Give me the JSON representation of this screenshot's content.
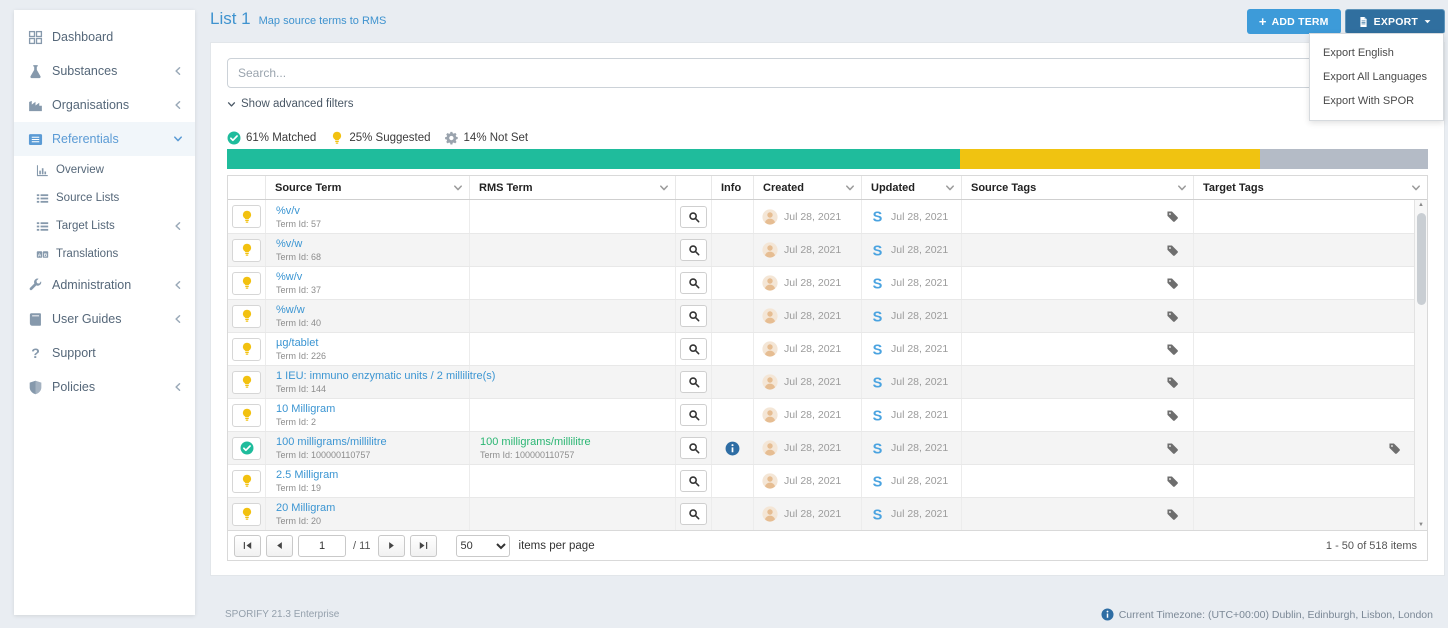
{
  "sidebar": {
    "items": [
      {
        "label": "Dashboard",
        "icon": "dashboard",
        "chevron": null,
        "active": false,
        "sub": false
      },
      {
        "label": "Substances",
        "icon": "flask",
        "chevron": "left",
        "active": false,
        "sub": false
      },
      {
        "label": "Organisations",
        "icon": "industry",
        "chevron": "left",
        "active": false,
        "sub": false
      },
      {
        "label": "Referentials",
        "icon": "list-alt",
        "chevron": "down",
        "active": true,
        "sub": false
      },
      {
        "label": "Overview",
        "icon": "chart",
        "chevron": null,
        "active": false,
        "sub": true
      },
      {
        "label": "Source Lists",
        "icon": "list",
        "chevron": null,
        "active": false,
        "sub": true
      },
      {
        "label": "Target Lists",
        "icon": "list",
        "chevron": "left",
        "active": false,
        "sub": true
      },
      {
        "label": "Translations",
        "icon": "translate",
        "chevron": null,
        "active": false,
        "sub": true
      },
      {
        "label": "Administration",
        "icon": "wrench",
        "chevron": "left",
        "active": false,
        "sub": false
      },
      {
        "label": "User Guides",
        "icon": "book",
        "chevron": "left",
        "active": false,
        "sub": false
      },
      {
        "label": "Support",
        "icon": "question",
        "chevron": null,
        "active": false,
        "sub": false
      },
      {
        "label": "Policies",
        "icon": "shield",
        "chevron": "left",
        "active": false,
        "sub": false
      }
    ]
  },
  "header": {
    "title": "List 1",
    "subtitle": "Map source terms to RMS",
    "add_plus": "+",
    "add_term_label": "ADD TERM",
    "export_label": "EXPORT",
    "export_menu": [
      "Export English",
      "Export All Languages",
      "Export With SPOR"
    ]
  },
  "filters": {
    "search_placeholder": "Search...",
    "search_value": "",
    "advanced_label": "Show advanced filters"
  },
  "status": {
    "matched": {
      "pct": 61,
      "label": "61% Matched",
      "color": "#1fbc9c"
    },
    "suggested": {
      "pct": 25,
      "label": "25% Suggested",
      "color": "#f0c311"
    },
    "not_set": {
      "pct": 14,
      "label": "14% Not Set",
      "color": "#b4bbc6"
    }
  },
  "table": {
    "columns": [
      {
        "label": "Source Term",
        "menu": true
      },
      {
        "label": "RMS Term",
        "menu": true
      },
      {
        "label": "Info",
        "menu": false
      },
      {
        "label": "Created",
        "menu": true
      },
      {
        "label": "Updated",
        "menu": true
      },
      {
        "label": "Source Tags",
        "menu": true
      },
      {
        "label": "Target Tags",
        "menu": true
      }
    ],
    "rows": [
      {
        "status": "suggested",
        "term": "%v/v",
        "term_id": "Term Id: 57",
        "rms_term": "",
        "rms_term_id": "",
        "info": false,
        "created": "Jul 28, 2021",
        "updated": "Jul 28, 2021",
        "source_tag": true,
        "target_tag": false
      },
      {
        "status": "suggested",
        "term": "%v/w",
        "term_id": "Term Id: 68",
        "rms_term": "",
        "rms_term_id": "",
        "info": false,
        "created": "Jul 28, 2021",
        "updated": "Jul 28, 2021",
        "source_tag": true,
        "target_tag": false
      },
      {
        "status": "suggested",
        "term": "%w/v",
        "term_id": "Term Id: 37",
        "rms_term": "",
        "rms_term_id": "",
        "info": false,
        "created": "Jul 28, 2021",
        "updated": "Jul 28, 2021",
        "source_tag": true,
        "target_tag": false
      },
      {
        "status": "suggested",
        "term": "%w/w",
        "term_id": "Term Id: 40",
        "rms_term": "",
        "rms_term_id": "",
        "info": false,
        "created": "Jul 28, 2021",
        "updated": "Jul 28, 2021",
        "source_tag": true,
        "target_tag": false
      },
      {
        "status": "suggested",
        "term": "µg/tablet",
        "term_id": "Term Id: 226",
        "rms_term": "",
        "rms_term_id": "",
        "info": false,
        "created": "Jul 28, 2021",
        "updated": "Jul 28, 2021",
        "source_tag": true,
        "target_tag": false
      },
      {
        "status": "suggested",
        "term": "1 IEU: immuno enzymatic units / 2 millilitre(s)",
        "term_id": "Term Id: 144",
        "rms_term": "",
        "rms_term_id": "",
        "info": false,
        "created": "Jul 28, 2021",
        "updated": "Jul 28, 2021",
        "source_tag": true,
        "target_tag": false
      },
      {
        "status": "suggested",
        "term": "10 Milligram",
        "term_id": "Term Id: 2",
        "rms_term": "",
        "rms_term_id": "",
        "info": false,
        "created": "Jul 28, 2021",
        "updated": "Jul 28, 2021",
        "source_tag": true,
        "target_tag": false
      },
      {
        "status": "matched",
        "term": "100 milligrams/millilitre",
        "term_id": "Term Id: 100000110757",
        "rms_term": "100 milligrams/millilitre",
        "rms_term_id": "Term Id: 100000110757",
        "info": true,
        "created": "Jul 28, 2021",
        "updated": "Jul 28, 2021",
        "source_tag": true,
        "target_tag": true
      },
      {
        "status": "suggested",
        "term": "2.5 Milligram",
        "term_id": "Term Id: 19",
        "rms_term": "",
        "rms_term_id": "",
        "info": false,
        "created": "Jul 28, 2021",
        "updated": "Jul 28, 2021",
        "source_tag": true,
        "target_tag": false
      },
      {
        "status": "suggested",
        "term": "20 Milligram",
        "term_id": "Term Id: 20",
        "rms_term": "",
        "rms_term_id": "",
        "info": false,
        "created": "Jul 28, 2021",
        "updated": "Jul 28, 2021",
        "source_tag": true,
        "target_tag": false
      }
    ]
  },
  "pagination": {
    "page": "1",
    "total_pages_label": "/ 11",
    "page_size": "50",
    "items_per_page_label": "items per page",
    "range_label": "1 - 50 of 518 items"
  },
  "footer": {
    "version": "SPORIFY 21.3 Enterprise",
    "timezone": "Current Timezone: (UTC+00:00) Dublin, Edinburgh, Lisbon, London"
  }
}
